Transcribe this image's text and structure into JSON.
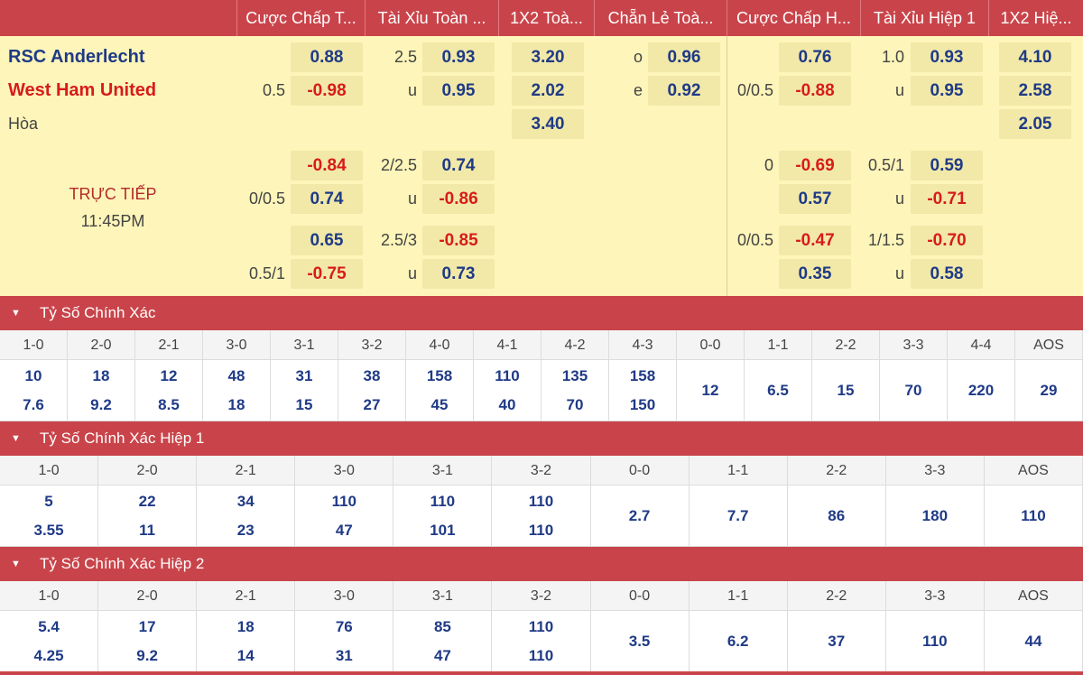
{
  "header": {
    "cols": [
      "Cược Chấp T...",
      "Tài Xỉu Toàn ...",
      "1X2 Toà...",
      "Chẵn Lẻ Toà...",
      "Cược Chấp H...",
      "Tài Xỉu Hiệp 1",
      "1X2 Hiệ..."
    ]
  },
  "match": {
    "home": "RSC Anderlecht",
    "away": "West Ham United",
    "draw": "Hòa",
    "status": "TRỰC TIẾP",
    "time": "11:45PM"
  },
  "odds": {
    "ft_hdp": {
      "main": {
        "line": "0.5",
        "home": "0.88",
        "away": "-0.98"
      },
      "alt1": {
        "line": "0/0.5",
        "home": "-0.84",
        "away": "0.74"
      },
      "alt2": {
        "line": "0.5/1",
        "home": "0.65",
        "away": "-0.75"
      }
    },
    "ft_ou": {
      "main": {
        "line": "2.5",
        "over": "0.93",
        "under_label": "u",
        "under": "0.95"
      },
      "alt1": {
        "line": "2/2.5",
        "over": "0.74",
        "under_label": "u",
        "under": "-0.86"
      },
      "alt2": {
        "line": "2.5/3",
        "over": "-0.85",
        "under_label": "u",
        "under": "0.73"
      }
    },
    "ft_1x2": {
      "home": "3.20",
      "away": "2.02",
      "draw": "3.40"
    },
    "ft_oe": {
      "odd_label": "o",
      "odd": "0.96",
      "even_label": "e",
      "even": "0.92"
    },
    "h1_hdp": {
      "main": {
        "line": "0/0.5",
        "home": "0.76",
        "away": "-0.88"
      },
      "alt1": {
        "line": "0",
        "home": "-0.69",
        "away": "0.57"
      },
      "alt2": {
        "line": "0/0.5",
        "home": "-0.47",
        "away": "0.35"
      }
    },
    "h1_ou": {
      "main": {
        "line": "1.0",
        "over": "0.93",
        "under_label": "u",
        "under": "0.95"
      },
      "alt1": {
        "line": "0.5/1",
        "over": "0.59",
        "under_label": "u",
        "under": "-0.71"
      },
      "alt2": {
        "line": "1/1.5",
        "over": "-0.70",
        "under_label": "u",
        "under": "0.58"
      }
    },
    "h1_1x2": {
      "home": "4.10",
      "away": "2.58",
      "draw": "2.05"
    }
  },
  "sections": [
    {
      "title": "Tỷ Số Chính Xác",
      "cols": [
        {
          "score": "1-0",
          "a": "10",
          "b": "7.6"
        },
        {
          "score": "2-0",
          "a": "18",
          "b": "9.2"
        },
        {
          "score": "2-1",
          "a": "12",
          "b": "8.5"
        },
        {
          "score": "3-0",
          "a": "48",
          "b": "18"
        },
        {
          "score": "3-1",
          "a": "31",
          "b": "15"
        },
        {
          "score": "3-2",
          "a": "38",
          "b": "27"
        },
        {
          "score": "4-0",
          "a": "158",
          "b": "45"
        },
        {
          "score": "4-1",
          "a": "110",
          "b": "40"
        },
        {
          "score": "4-2",
          "a": "135",
          "b": "70"
        },
        {
          "score": "4-3",
          "a": "158",
          "b": "150"
        },
        {
          "score": "0-0",
          "c": "12"
        },
        {
          "score": "1-1",
          "c": "6.5"
        },
        {
          "score": "2-2",
          "c": "15"
        },
        {
          "score": "3-3",
          "c": "70"
        },
        {
          "score": "4-4",
          "c": "220"
        },
        {
          "score": "AOS",
          "c": "29"
        }
      ]
    },
    {
      "title": "Tỷ Số Chính Xác Hiệp 1",
      "cols": [
        {
          "score": "1-0",
          "a": "5",
          "b": "3.55"
        },
        {
          "score": "2-0",
          "a": "22",
          "b": "11"
        },
        {
          "score": "2-1",
          "a": "34",
          "b": "23"
        },
        {
          "score": "3-0",
          "a": "110",
          "b": "47"
        },
        {
          "score": "3-1",
          "a": "110",
          "b": "101"
        },
        {
          "score": "3-2",
          "a": "110",
          "b": "110"
        },
        {
          "score": "0-0",
          "c": "2.7"
        },
        {
          "score": "1-1",
          "c": "7.7"
        },
        {
          "score": "2-2",
          "c": "86"
        },
        {
          "score": "3-3",
          "c": "180"
        },
        {
          "score": "AOS",
          "c": "110"
        }
      ]
    },
    {
      "title": "Tỷ Số Chính Xác Hiệp 2",
      "cols": [
        {
          "score": "1-0",
          "a": "5.4",
          "b": "4.25"
        },
        {
          "score": "2-0",
          "a": "17",
          "b": "9.2"
        },
        {
          "score": "2-1",
          "a": "18",
          "b": "14"
        },
        {
          "score": "3-0",
          "a": "76",
          "b": "31"
        },
        {
          "score": "3-1",
          "a": "85",
          "b": "47"
        },
        {
          "score": "3-2",
          "a": "110",
          "b": "110"
        },
        {
          "score": "0-0",
          "c": "3.5"
        },
        {
          "score": "1-1",
          "c": "6.2"
        },
        {
          "score": "2-2",
          "c": "37"
        },
        {
          "score": "3-3",
          "c": "110"
        },
        {
          "score": "AOS",
          "c": "44"
        }
      ]
    }
  ]
}
